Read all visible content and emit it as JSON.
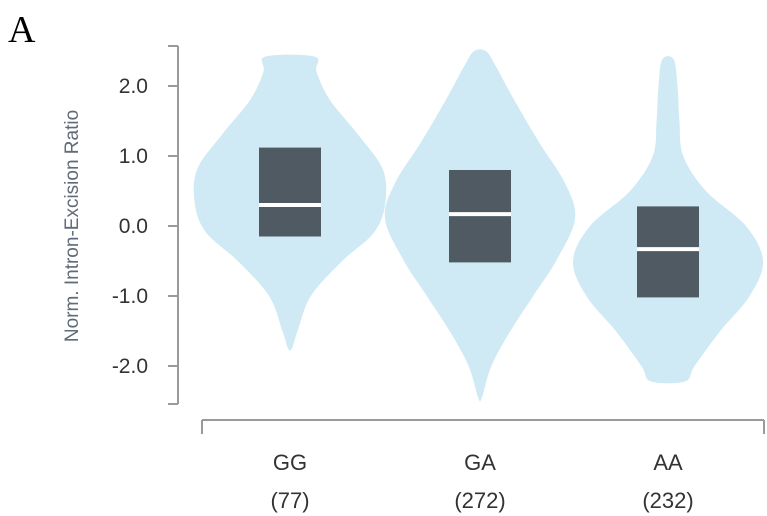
{
  "figure": {
    "panel_letter": "A"
  },
  "colors": {
    "violin_fill": "#cfeaf5",
    "box_fill": "#505a62",
    "median_line": "#ffffff",
    "axis": "#9a9a9a",
    "text": "#333333",
    "ylabel_text": "#5f6b78"
  },
  "chart_data": {
    "type": "violin",
    "title": "",
    "ylabel": "Norm. Intron-Excision Ratio",
    "xlabel": "",
    "ylim": [
      -2.6,
      2.6
    ],
    "yticks": [
      2.0,
      1.0,
      0.0,
      -1.0,
      -2.0
    ],
    "ytick_labels": [
      "2.0",
      "1.0",
      "0.0",
      "-1.0",
      "-2.0"
    ],
    "categories": [
      "GG",
      "GA",
      "AA"
    ],
    "counts": [
      "(77)",
      "(272)",
      "(232)"
    ],
    "groups": [
      {
        "name": "GG",
        "n": "(77)",
        "q1": -0.15,
        "median": 0.3,
        "q3": 1.12,
        "min": -1.75,
        "max": 2.42,
        "density": [
          [
            -1.75,
            0.02
          ],
          [
            -1.5,
            0.08
          ],
          [
            -1.0,
            0.22
          ],
          [
            -0.5,
            0.55
          ],
          [
            -0.1,
            0.88
          ],
          [
            0.3,
            1.0
          ],
          [
            0.8,
            0.98
          ],
          [
            1.3,
            0.72
          ],
          [
            1.8,
            0.42
          ],
          [
            2.2,
            0.28
          ],
          [
            2.42,
            0.26
          ]
        ]
      },
      {
        "name": "GA",
        "n": "(272)",
        "q1": -0.52,
        "median": 0.17,
        "q3": 0.8,
        "min": -2.45,
        "max": 2.5,
        "density": [
          [
            -2.45,
            0.02
          ],
          [
            -2.0,
            0.12
          ],
          [
            -1.5,
            0.32
          ],
          [
            -1.0,
            0.56
          ],
          [
            -0.5,
            0.8
          ],
          [
            0.1,
            1.0
          ],
          [
            0.6,
            0.9
          ],
          [
            1.2,
            0.62
          ],
          [
            1.8,
            0.36
          ],
          [
            2.3,
            0.16
          ],
          [
            2.5,
            0.06
          ]
        ]
      },
      {
        "name": "AA",
        "n": "(232)",
        "q1": -1.02,
        "median": -0.33,
        "q3": 0.28,
        "min": -2.22,
        "max": 2.38,
        "density": [
          [
            -2.22,
            0.18
          ],
          [
            -2.0,
            0.28
          ],
          [
            -1.5,
            0.55
          ],
          [
            -1.0,
            0.86
          ],
          [
            -0.5,
            1.0
          ],
          [
            0.0,
            0.82
          ],
          [
            0.5,
            0.4
          ],
          [
            1.0,
            0.16
          ],
          [
            1.5,
            0.12
          ],
          [
            2.0,
            0.1
          ],
          [
            2.38,
            0.06
          ]
        ]
      }
    ]
  }
}
